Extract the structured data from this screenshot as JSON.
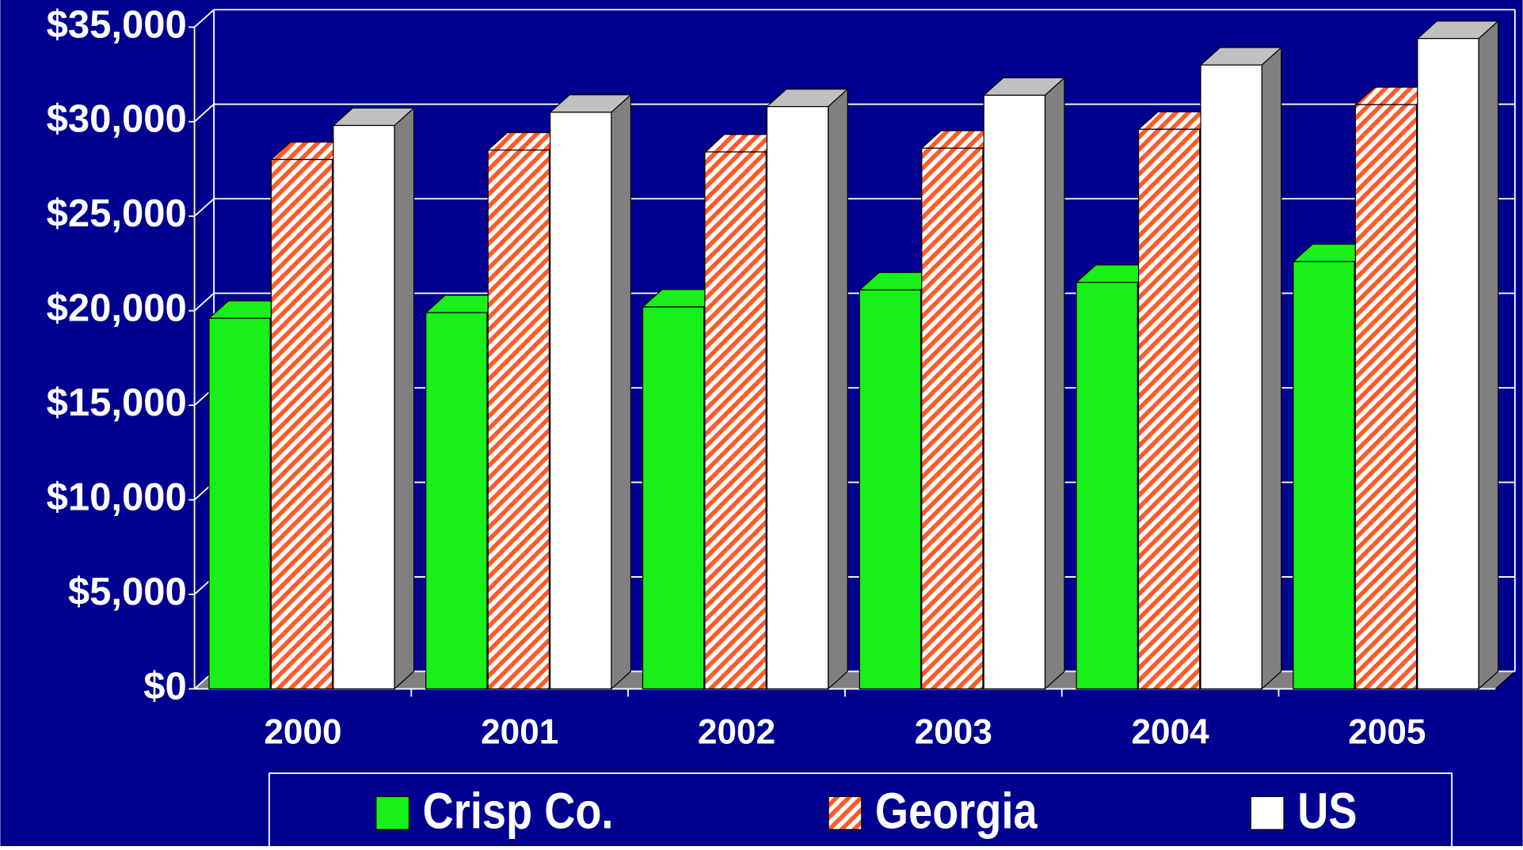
{
  "chart_data": {
    "type": "bar3d",
    "categories": [
      "2000",
      "2001",
      "2002",
      "2003",
      "2004",
      "2005"
    ],
    "series": [
      {
        "name": "Crisp Co.",
        "color": "#19f019",
        "values": [
          19600,
          19900,
          20200,
          21100,
          21500,
          22600
        ]
      },
      {
        "name": "Georgia",
        "color": "#ff5a28",
        "hatch": "diagonal",
        "values": [
          28000,
          28500,
          28400,
          28600,
          29600,
          30900
        ]
      },
      {
        "name": "US",
        "color": "#ffffff",
        "values": [
          29800,
          30500,
          30800,
          31400,
          33000,
          34400
        ]
      }
    ],
    "ylim": [
      0,
      35000
    ],
    "yticks": [
      {
        "value": 0,
        "label": "$0"
      },
      {
        "value": 5000,
        "label": "$5,000"
      },
      {
        "value": 10000,
        "label": "$10,000"
      },
      {
        "value": 15000,
        "label": "$15,000"
      },
      {
        "value": 20000,
        "label": "$20,000"
      },
      {
        "value": 25000,
        "label": "$25,000"
      },
      {
        "value": 30000,
        "label": "$30,000"
      },
      {
        "value": 35000,
        "label": "$35,000"
      }
    ],
    "grid": true,
    "legend": "bottom",
    "background": "#000090"
  }
}
